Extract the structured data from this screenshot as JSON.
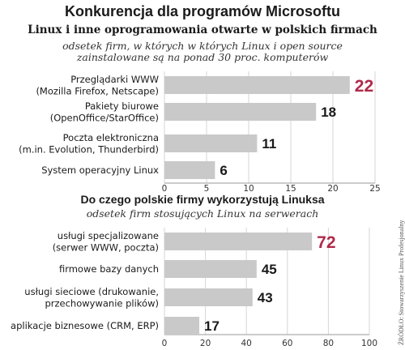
{
  "header": {
    "title": "Konkurencja dla programów Microsoftu"
  },
  "chart_data": [
    {
      "type": "bar",
      "orientation": "horizontal",
      "title": "Linux i inne oprogramowania otwarte w polskich firmach",
      "subtitle_lines": [
        "odsetek firm, w których w których Linux i open source",
        "zainstalowane są na ponad 30 proc. komputerów"
      ],
      "categories": [
        [
          "Przeglądarki WWW",
          "(Mozilla Firefox, Netscape)"
        ],
        [
          "Pakiety biurowe",
          "(OpenOffice/StarOffice)"
        ],
        [
          "Poczta elektroniczna",
          "(m.in.  Evolution, Thunderbird)"
        ],
        [
          "System operacyjny Linux"
        ]
      ],
      "values": [
        22,
        18,
        11,
        6
      ],
      "value_labels": [
        "22",
        "18",
        "11",
        "6"
      ],
      "xlim": [
        0,
        25
      ],
      "ticks": [
        0,
        5,
        10,
        15,
        20,
        25
      ],
      "tick_labels": [
        "0",
        "5",
        "10",
        "15",
        "20",
        "25"
      ],
      "grid": true,
      "bar_color": "#c9c9c9",
      "highlight_color": "#b02a4a",
      "highlight_index": 0
    },
    {
      "type": "bar",
      "orientation": "horizontal",
      "title": "Do czego polskie firmy wykorzystują Linuksa",
      "subtitle_lines": [
        "odsetek firm stosujących Linux na serwerach"
      ],
      "categories": [
        [
          "usługi specjalizowane",
          "(serwer WWW, poczta)"
        ],
        [
          "firmowe bazy danych"
        ],
        [
          "usługi sieciowe (drukowanie,",
          "przechowywanie plików)"
        ],
        [
          "aplikacje biznesowe (CRM, ERP)"
        ]
      ],
      "values": [
        72,
        45,
        43,
        17
      ],
      "value_labels": [
        "72",
        "45",
        "43",
        "17"
      ],
      "xlim": [
        0,
        100
      ],
      "ticks": [
        0,
        20,
        40,
        60,
        80,
        100
      ],
      "tick_labels": [
        "0",
        "20",
        "40",
        "60",
        "80",
        "100"
      ],
      "grid": true,
      "bar_color": "#c9c9c9",
      "highlight_color": "#b02a4a",
      "highlight_index": 0
    }
  ],
  "source": "ŹRÓDŁO: Stowarzyszenie Linux Profesjonalny"
}
